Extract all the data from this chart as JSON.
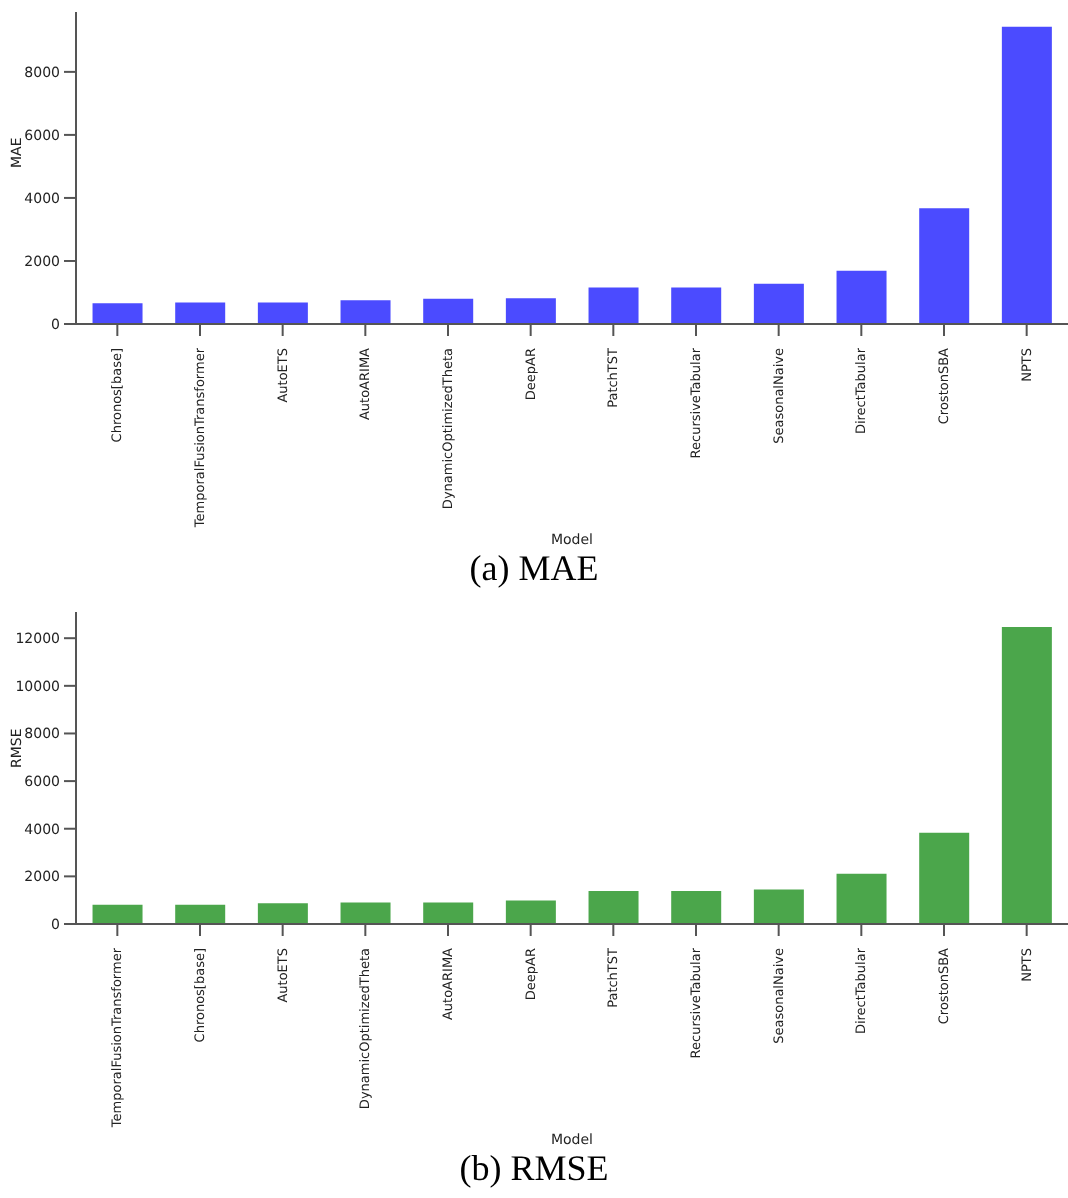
{
  "chart_data": [
    {
      "type": "bar",
      "title": "(a)  MAE",
      "xlabel": "Model",
      "ylabel": "MAE",
      "categories": [
        "Chronos[base]",
        "TemporalFusionTransformer",
        "AutoETS",
        "AutoARIMA",
        "DynamicOptimizedTheta",
        "DeepAR",
        "PatchTST",
        "RecursiveTabular",
        "SeasonalNaive",
        "DirectTabular",
        "CrostonSBA",
        "NPTS"
      ],
      "values": [
        660,
        680,
        680,
        750,
        800,
        820,
        1160,
        1160,
        1280,
        1690,
        3670,
        9430
      ],
      "color": "#4b4bff",
      "ylim": [
        0,
        9900
      ],
      "yticks": [
        0,
        2000,
        4000,
        6000,
        8000
      ],
      "grid": false
    },
    {
      "type": "bar",
      "title": "(b)  RMSE",
      "xlabel": "Model",
      "ylabel": "RMSE",
      "categories": [
        "TemporalFusionTransformer",
        "Chronos[base]",
        "AutoETS",
        "DynamicOptimizedTheta",
        "AutoARIMA",
        "DeepAR",
        "PatchTST",
        "RecursiveTabular",
        "SeasonalNaive",
        "DirectTabular",
        "CrostonSBA",
        "NPTS"
      ],
      "values": [
        810,
        810,
        870,
        900,
        900,
        990,
        1390,
        1390,
        1450,
        2110,
        3830,
        12470
      ],
      "color": "#4ba64b",
      "ylim": [
        0,
        13100
      ],
      "yticks": [
        0,
        2000,
        4000,
        6000,
        8000,
        10000,
        12000
      ],
      "grid": false
    }
  ]
}
